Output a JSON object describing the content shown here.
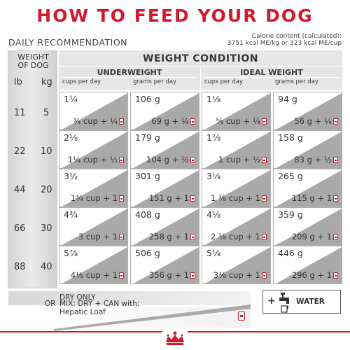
{
  "title": "HOW TO FEED YOUR DOG",
  "daily_recommendation": "DAILY RECOMMENDATION",
  "calorie": {
    "line1": "Calorie content (calculated):",
    "line2": "3751 kcal ME/kg or 323 kcal ME/cup"
  },
  "weight_of_dog": {
    "line1": "WEIGHT",
    "line2": "OF DOG",
    "unit_lb": "lb",
    "unit_kg": "kg"
  },
  "weights": [
    {
      "lb": "11",
      "kg": "5"
    },
    {
      "lb": "22",
      "kg": "10"
    },
    {
      "lb": "44",
      "kg": "20"
    },
    {
      "lb": "66",
      "kg": "30"
    },
    {
      "lb": "88",
      "kg": "40"
    }
  ],
  "header": {
    "weight_condition": "WEIGHT CONDITION",
    "underweight": "UNDERWEIGHT",
    "ideal_weight": "IDEAL WEIGHT",
    "cups_per_day": "cups per day",
    "grams_per_day": "grams per day"
  },
  "rows": [
    [
      {
        "dry": "1¼",
        "mix": "¾ cup + ¼"
      },
      {
        "dry": "106 g",
        "mix": "69 g + ¼"
      },
      {
        "dry": "1⅛",
        "mix": "⅝ cup + ¼"
      },
      {
        "dry": "94 g",
        "mix": "56 g + ¼"
      }
    ],
    [
      {
        "dry": "2⅛",
        "mix": "1¼ cup + ½"
      },
      {
        "dry": "179 g",
        "mix": "104 g + ½"
      },
      {
        "dry": "1⅞",
        "mix": "1 cup + ½"
      },
      {
        "dry": "158 g",
        "mix": "83 g + ½"
      }
    ],
    [
      {
        "dry": "3½",
        "mix": "1¾ cup + 1"
      },
      {
        "dry": "301 g",
        "mix": "151 g + 1"
      },
      {
        "dry": "3⅛",
        "mix": "1 ⅜ cup + 1"
      },
      {
        "dry": "265 g",
        "mix": "115 g + 1"
      }
    ],
    [
      {
        "dry": "4¾",
        "mix": "3 cup + 1"
      },
      {
        "dry": "408 g",
        "mix": "258 g + 1"
      },
      {
        "dry": "4⅛",
        "mix": "2 ⅜ cup + 1"
      },
      {
        "dry": "359 g",
        "mix": "209 g + 1"
      }
    ],
    [
      {
        "dry": "5⅞",
        "mix": "4⅛ cup + 1"
      },
      {
        "dry": "506 g",
        "mix": "356 g + 1"
      },
      {
        "dry": "5⅛",
        "mix": "3⅜ cup + 1"
      },
      {
        "dry": "446 g",
        "mix": "296 g + 1"
      }
    ]
  ],
  "legend": {
    "dry_only": "DRY ONLY",
    "or": "OR",
    "mix_line1": "MIX: DRY + CAN with:",
    "mix_line2": "Hepatic Loaf",
    "plus": "+",
    "water": "WATER"
  },
  "colors": {
    "brand_red": "#d01a2d",
    "gray": "#a9a9a9"
  }
}
